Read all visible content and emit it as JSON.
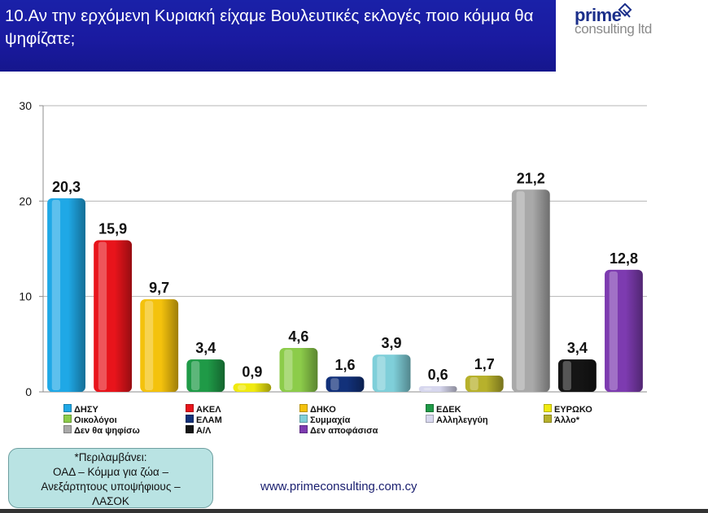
{
  "title": "10.Αν την ερχόμενη Κυριακή είχαμε Βουλευτικές εκλογές ποιο κόμμα θα ψηφίζατε;",
  "logo": {
    "line1": "prime",
    "line2": "consulting ltd"
  },
  "website": "www.primeconsulting.com.cy",
  "note": {
    "lines": [
      "*Περιλαμβάνει:",
      "ΟΑΔ – Κόμμα για ζώα –",
      "Ανεξάρτητους υποψήφιους –",
      "ΛΑΣΟΚ"
    ]
  },
  "chart_data": {
    "type": "bar",
    "categories": [
      "ΔΗΣΥ",
      "ΑΚΕΛ",
      "ΔΗΚΟ",
      "ΕΔΕΚ",
      "ΕΥΡΩΚΟ",
      "Οικολόγοι",
      "ΕΛΑΜ",
      "Συμμαχία",
      "Αλληλεγγύη",
      "Άλλο*",
      "Δεν θα ψηφίσω",
      "Α/Λ",
      "Δεν αποφάσισα"
    ],
    "values": [
      20.3,
      15.9,
      9.7,
      3.4,
      0.9,
      4.6,
      1.6,
      3.9,
      0.6,
      1.7,
      21.2,
      3.4,
      12.8
    ],
    "value_labels": [
      "20,3",
      "15,9",
      "9,7",
      "3,4",
      "0,9",
      "4,6",
      "1,6",
      "3,9",
      "0,6",
      "1,7",
      "21,2",
      "3,4",
      "12,8"
    ],
    "colors": [
      "#1fa8e6",
      "#e8141b",
      "#f4c20d",
      "#1f9a47",
      "#f0ea10",
      "#8ccc4a",
      "#12317a",
      "#7fcfd9",
      "#d7d7ee",
      "#b7b12c",
      "#a9a9a9",
      "#151515",
      "#7d3bb0"
    ],
    "ylim": [
      0,
      30
    ],
    "yticks": [
      "0",
      "10",
      "20",
      "30"
    ],
    "ytick_values": [
      0,
      10,
      20,
      30
    ],
    "grid": true,
    "legend_position": "bottom"
  }
}
